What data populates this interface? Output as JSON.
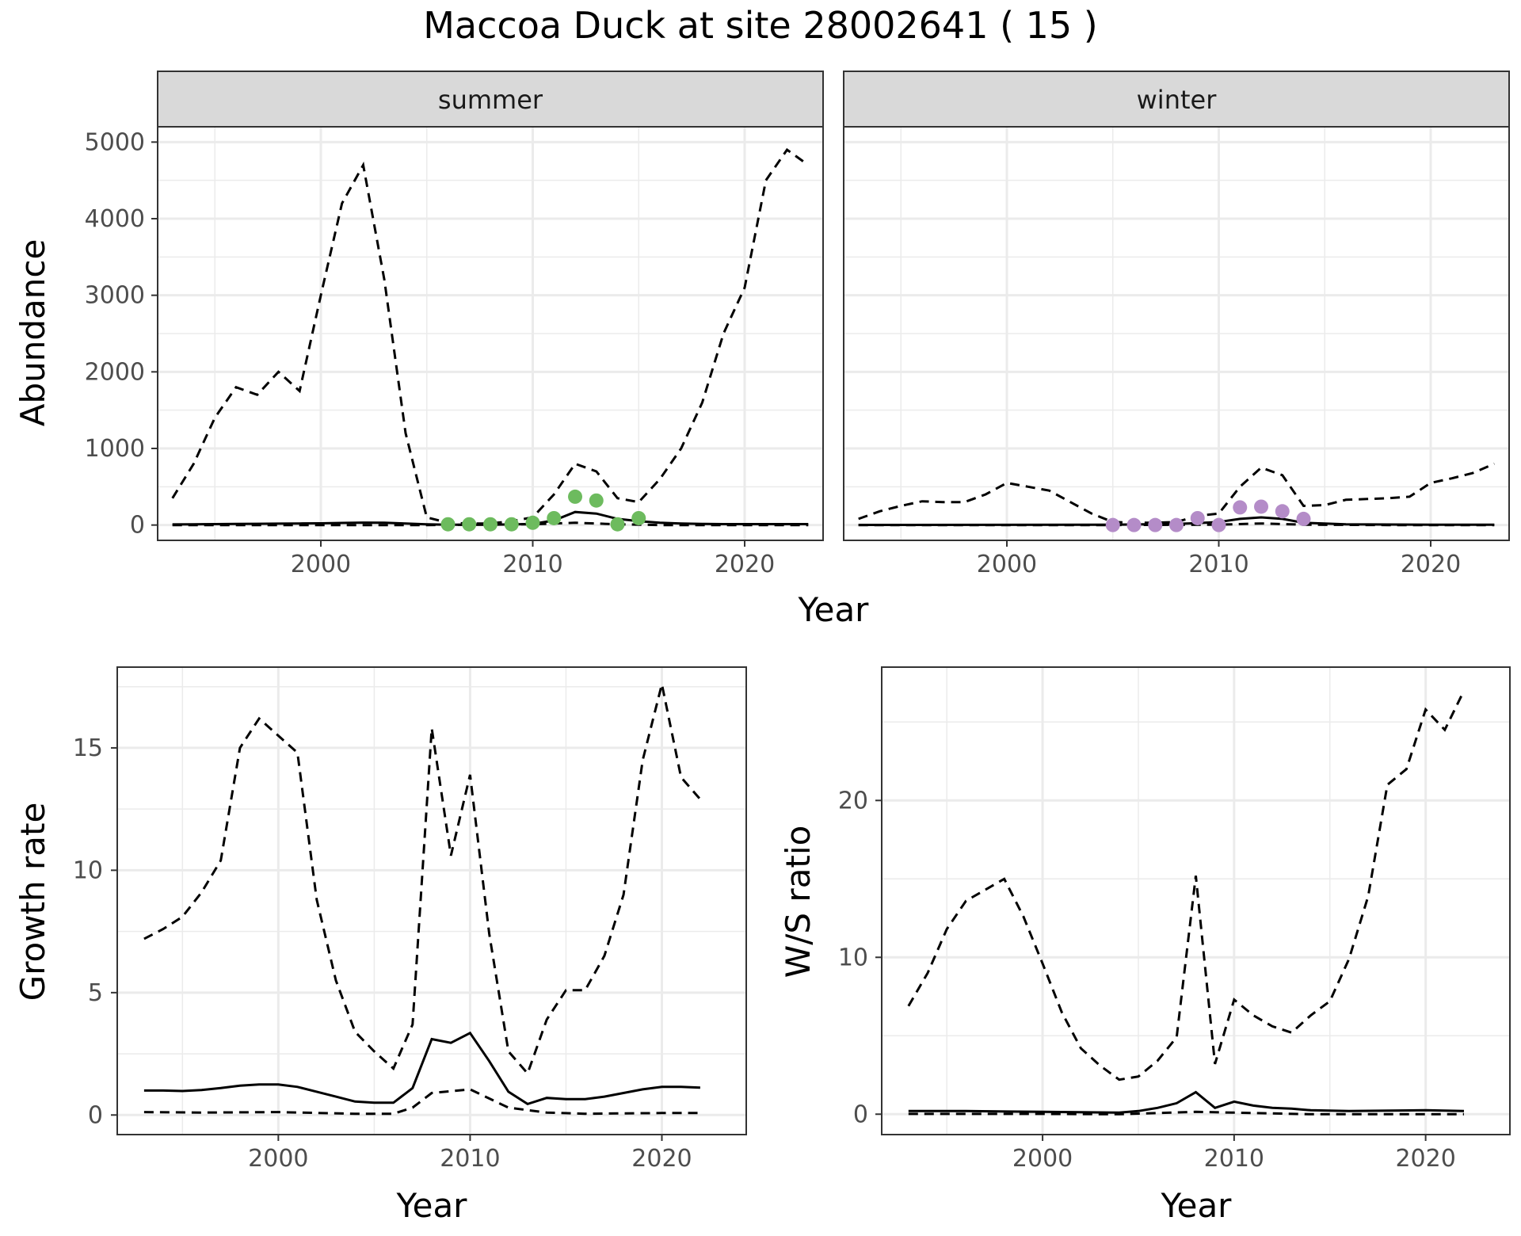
{
  "title": "Maccoa Duck at site 28002641 ( 15 )",
  "colors": {
    "summer_points": "#6dbb5e",
    "winter_points": "#b48cc8",
    "lines": "#000000",
    "strip_bg": "#d9d9d9",
    "grid": "#ebebeb"
  },
  "chart_data": [
    {
      "panel": "summer",
      "type": "line",
      "xlabel": "Year",
      "ylabel": "Abundance",
      "xlim": [
        1992.3,
        2023.7
      ],
      "ylim": [
        -200,
        5200
      ],
      "xticks": [
        2000,
        2010,
        2020
      ],
      "yticks": [
        0,
        1000,
        2000,
        3000,
        4000,
        5000
      ],
      "grid": true,
      "estimate": {
        "x": [
          1993,
          1994,
          1995,
          1996,
          1997,
          1998,
          1999,
          2000,
          2001,
          2002,
          2003,
          2004,
          2005,
          2006,
          2007,
          2008,
          2009,
          2010,
          2011,
          2012,
          2013,
          2014,
          2015,
          2016,
          2017,
          2018,
          2019,
          2020,
          2021,
          2022,
          2023
        ],
        "y": [
          8,
          10,
          12,
          14,
          16,
          18,
          20,
          22,
          28,
          32,
          30,
          20,
          10,
          5,
          5,
          5,
          8,
          15,
          60,
          170,
          150,
          80,
          50,
          30,
          20,
          15,
          12,
          12,
          12,
          12,
          12
        ]
      },
      "upper": {
        "x": [
          1993,
          1994,
          1995,
          1996,
          1997,
          1998,
          1999,
          2000,
          2001,
          2002,
          2003,
          2004,
          2005,
          2006,
          2007,
          2008,
          2009,
          2010,
          2011,
          2012,
          2013,
          2014,
          2015,
          2016,
          2017,
          2018,
          2019,
          2020,
          2021,
          2022,
          2023
        ],
        "y": [
          350,
          800,
          1400,
          1800,
          1700,
          2000,
          1750,
          3000,
          4200,
          4700,
          3200,
          1200,
          100,
          30,
          20,
          20,
          50,
          100,
          400,
          800,
          700,
          350,
          300,
          600,
          1000,
          1600,
          2500,
          3100,
          4500,
          4900,
          4700
        ]
      },
      "lower": {
        "x": [
          1993,
          1995,
          2000,
          2005,
          2010,
          2012,
          2014,
          2016,
          2020,
          2023
        ],
        "y": [
          0,
          0,
          0,
          0,
          10,
          30,
          10,
          0,
          0,
          0
        ]
      },
      "points": {
        "x": [
          2006,
          2007,
          2008,
          2009,
          2010,
          2011,
          2012,
          2013,
          2014,
          2015
        ],
        "y": [
          10,
          10,
          10,
          10,
          30,
          90,
          370,
          320,
          10,
          90
        ]
      }
    },
    {
      "panel": "winter",
      "type": "line",
      "xlabel": "Year",
      "ylabel": "Abundance",
      "xlim": [
        1992.3,
        2023.7
      ],
      "ylim": [
        -200,
        5200
      ],
      "xticks": [
        2000,
        2010,
        2020
      ],
      "yticks": [
        0,
        1000,
        2000,
        3000,
        4000,
        5000
      ],
      "grid": true,
      "estimate": {
        "x": [
          1993,
          1995,
          2000,
          2005,
          2008,
          2009,
          2010,
          2011,
          2012,
          2013,
          2014,
          2016,
          2020,
          2023
        ],
        "y": [
          2,
          2,
          3,
          5,
          15,
          25,
          40,
          80,
          100,
          80,
          30,
          10,
          5,
          5
        ]
      },
      "upper": {
        "x": [
          1993,
          1994,
          1995,
          1996,
          1997,
          1998,
          1999,
          2000,
          2001,
          2002,
          2003,
          2004,
          2005,
          2006,
          2007,
          2008,
          2009,
          2010,
          2011,
          2012,
          2013,
          2014,
          2015,
          2016,
          2017,
          2018,
          2019,
          2020,
          2021,
          2022,
          2023
        ],
        "y": [
          80,
          180,
          250,
          310,
          300,
          300,
          400,
          550,
          500,
          450,
          300,
          150,
          40,
          30,
          30,
          40,
          120,
          150,
          500,
          750,
          650,
          250,
          260,
          330,
          340,
          350,
          370,
          550,
          610,
          680,
          800
        ]
      },
      "lower": {
        "x": [
          1993,
          2000,
          2005,
          2010,
          2012,
          2014,
          2018,
          2023
        ],
        "y": [
          0,
          0,
          0,
          5,
          20,
          5,
          0,
          0
        ]
      },
      "points": {
        "x": [
          2005,
          2006,
          2007,
          2008,
          2009,
          2010,
          2011,
          2012,
          2013,
          2014
        ],
        "y": [
          0,
          0,
          0,
          0,
          90,
          0,
          230,
          240,
          180,
          80
        ]
      }
    },
    {
      "panel": "growth",
      "type": "line",
      "xlabel": "Year",
      "ylabel": "Growth rate",
      "xlim": [
        1991.6,
        2024.4
      ],
      "ylim": [
        -0.8,
        18.3
      ],
      "xticks": [
        2000,
        2010,
        2020
      ],
      "yticks": [
        0,
        5,
        10,
        15
      ],
      "grid": true,
      "estimate": {
        "x": [
          1993,
          1994,
          1995,
          1996,
          1997,
          1998,
          1999,
          2000,
          2001,
          2002,
          2003,
          2004,
          2005,
          2006,
          2007,
          2008,
          2009,
          2010,
          2011,
          2012,
          2013,
          2014,
          2015,
          2016,
          2017,
          2018,
          2019,
          2020,
          2021,
          2022
        ],
        "y": [
          1.0,
          1.0,
          0.98,
          1.02,
          1.1,
          1.2,
          1.25,
          1.25,
          1.15,
          0.95,
          0.75,
          0.55,
          0.5,
          0.5,
          1.1,
          3.1,
          2.95,
          3.35,
          2.2,
          0.95,
          0.45,
          0.7,
          0.65,
          0.65,
          0.75,
          0.9,
          1.05,
          1.15,
          1.15,
          1.12
        ]
      },
      "upper": {
        "x": [
          1993,
          1994,
          1995,
          1996,
          1997,
          1998,
          1999,
          2000,
          2001,
          2002,
          2003,
          2004,
          2005,
          2006,
          2007,
          2008,
          2009,
          2010,
          2011,
          2012,
          2013,
          2014,
          2015,
          2016,
          2017,
          2018,
          2019,
          2020,
          2021,
          2022
        ],
        "y": [
          7.2,
          7.6,
          8.1,
          9.1,
          10.4,
          15.0,
          16.2,
          15.5,
          14.8,
          8.8,
          5.5,
          3.4,
          2.6,
          1.9,
          3.7,
          15.8,
          10.6,
          13.9,
          7.4,
          2.6,
          1.7,
          3.9,
          5.1,
          5.1,
          6.5,
          9.0,
          14.5,
          17.6,
          13.8,
          12.9
        ]
      },
      "lower": {
        "x": [
          1993,
          1996,
          2000,
          2004,
          2006,
          2007,
          2008,
          2010,
          2012,
          2014,
          2016,
          2020,
          2022
        ],
        "y": [
          0.12,
          0.1,
          0.12,
          0.05,
          0.05,
          0.3,
          0.9,
          1.05,
          0.3,
          0.1,
          0.05,
          0.08,
          0.08
        ]
      }
    },
    {
      "panel": "ratio",
      "type": "line",
      "xlabel": "Year",
      "ylabel": "W/S ratio",
      "xlim": [
        1991.6,
        2024.4
      ],
      "ylim": [
        -1.3,
        28.5
      ],
      "xticks": [
        2000,
        2010,
        2020
      ],
      "yticks": [
        0,
        10,
        20
      ],
      "grid": true,
      "estimate": {
        "x": [
          1993,
          1996,
          2000,
          2004,
          2005,
          2006,
          2007,
          2008,
          2009,
          2010,
          2011,
          2012,
          2013,
          2014,
          2016,
          2020,
          2022
        ],
        "y": [
          0.2,
          0.2,
          0.15,
          0.1,
          0.2,
          0.4,
          0.7,
          1.4,
          0.4,
          0.8,
          0.55,
          0.4,
          0.35,
          0.25,
          0.2,
          0.25,
          0.2
        ]
      },
      "upper": {
        "x": [
          1993,
          1994,
          1995,
          1996,
          1997,
          1998,
          1999,
          2000,
          2001,
          2002,
          2003,
          2004,
          2005,
          2006,
          2007,
          2008,
          2009,
          2010,
          2011,
          2012,
          2013,
          2014,
          2015,
          2016,
          2017,
          2018,
          2019,
          2020,
          2021,
          2022
        ],
        "y": [
          6.9,
          9.0,
          11.8,
          13.6,
          14.3,
          15.0,
          12.6,
          9.6,
          6.5,
          4.2,
          3.1,
          2.2,
          2.4,
          3.4,
          4.9,
          15.2,
          3.2,
          7.3,
          6.3,
          5.6,
          5.2,
          6.3,
          7.2,
          9.9,
          13.9,
          21.0,
          22.0,
          25.8,
          24.5,
          27.0
        ]
      },
      "lower": {
        "x": [
          1993,
          2000,
          2004,
          2008,
          2010,
          2014,
          2022
        ],
        "y": [
          0.02,
          0.02,
          0.0,
          0.15,
          0.1,
          0.0,
          0.0
        ]
      }
    }
  ],
  "strips": {
    "summer": "summer",
    "winter": "winter"
  },
  "labels": {
    "top_xlabel": "Year",
    "top_ylabel": "Abundance",
    "growth_xlabel": "Year",
    "growth_ylabel": "Growth rate",
    "ratio_xlabel": "Year",
    "ratio_ylabel": "W/S ratio"
  }
}
